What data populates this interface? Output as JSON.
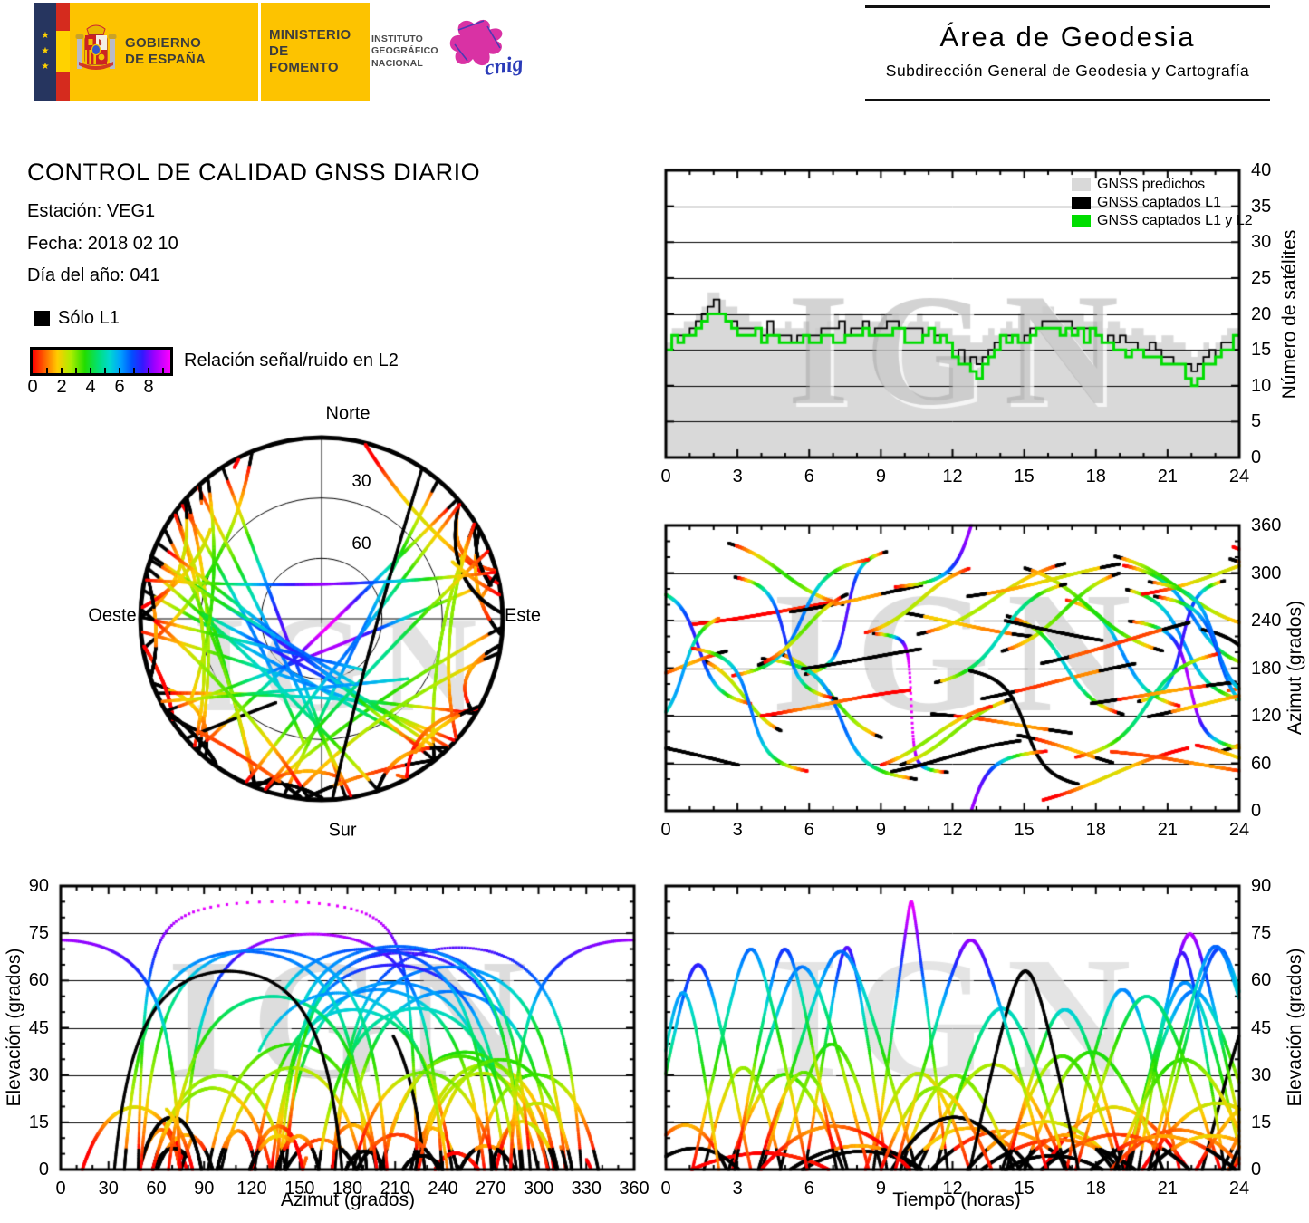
{
  "header": {
    "gobierno": {
      "line1": "GOBIERNO",
      "line2": "DE ESPAÑA"
    },
    "ministerio": {
      "line1": "MINISTERIO",
      "line2": "DE FOMENTO"
    },
    "ign": {
      "line1": "INSTITUTO",
      "line2": "GEOGRÁFICO",
      "line3": "NACIONAL"
    },
    "cnig_label": "cnig",
    "area": {
      "title": "Área de Geodesia",
      "subtitle": "Subdirección General de Geodesia y Cartografía"
    }
  },
  "info": {
    "title": "CONTROL DE CALIDAD GNSS DIARIO",
    "station": "Estación: VEG1",
    "date": "Fecha: 2018 02 10",
    "doy": "Día del año: 041"
  },
  "legend": {
    "l1_only": "Sólo L1",
    "snr_label": "Relación señal/ruido en L2",
    "colorbar_ticks": [
      "0",
      "2",
      "4",
      "6",
      "8"
    ],
    "colorbar_range": [
      0,
      9.5
    ]
  },
  "skyplot": {
    "north": "Norte",
    "south": "Sur",
    "west": "Oeste",
    "east": "Este",
    "ring_labels": [
      "30",
      "60"
    ],
    "summary": "Sky plot of GNSS satellite tracks over 24 h; concentric rings mark 30° and 60° elevation; point color = L2 signal/noise ratio (red = low, magenta = high), black = L1 only; empty lobe toward north"
  },
  "watermark": "IGN",
  "colors": {
    "predicted_fill": "#d9d9d9",
    "captured_l1": "#000000",
    "captured_l1l2": "#00dd00",
    "l1_only": "#000000",
    "watermark_gray": "#969696",
    "snr_ramp": [
      [
        0.0,
        "#ff0000"
      ],
      [
        0.09,
        "#ff6600"
      ],
      [
        0.18,
        "#ffcc00"
      ],
      [
        0.28,
        "#aaee00"
      ],
      [
        0.38,
        "#22dd00"
      ],
      [
        0.48,
        "#00e07a"
      ],
      [
        0.56,
        "#00d8d0"
      ],
      [
        0.64,
        "#00a0ff"
      ],
      [
        0.72,
        "#0050ff"
      ],
      [
        0.8,
        "#3318ff"
      ],
      [
        0.88,
        "#9900ff"
      ],
      [
        1.0,
        "#ff00ff"
      ]
    ]
  },
  "chart_data": [
    {
      "id": "satellite_count",
      "type": "area",
      "xlabel": "",
      "ylabel": "Número de satélites",
      "xlim": [
        0,
        24
      ],
      "ylim": [
        0,
        40
      ],
      "x_ticks": [
        0,
        3,
        6,
        9,
        12,
        15,
        18,
        21,
        24
      ],
      "y_ticks": [
        0,
        5,
        10,
        15,
        20,
        25,
        30,
        35,
        40
      ],
      "grid_y": [
        5,
        10,
        15,
        20,
        25,
        30,
        35
      ],
      "legend": [
        {
          "label": "GNSS predichos",
          "color": "#d9d9d9"
        },
        {
          "label": "GNSS captados L1",
          "color": "#000000"
        },
        {
          "label": "GNSS captados L1 y L2",
          "color": "#00dd00"
        }
      ],
      "series": [
        {
          "name": "GNSS predichos",
          "style": "gray filled step area",
          "hourly_values": [
            17,
            19,
            23,
            20,
            19,
            19,
            18,
            19,
            20,
            20,
            20,
            19,
            17,
            16,
            18,
            20,
            21,
            20,
            19,
            18,
            17,
            16,
            15,
            16,
            18
          ]
        },
        {
          "name": "GNSS captados L1",
          "style": "black step line",
          "hourly_values": [
            16,
            18,
            22,
            18,
            18,
            17,
            17,
            18,
            18,
            18,
            18,
            18,
            15,
            13,
            16,
            17,
            19,
            18,
            17,
            16,
            15,
            14,
            13,
            15,
            18
          ]
        },
        {
          "name": "GNSS captados L1 y L2",
          "style": "green step line",
          "hourly_values": [
            16,
            17,
            21,
            17,
            17,
            16,
            16,
            17,
            17,
            17,
            17,
            17,
            15,
            11,
            16,
            17,
            18,
            17,
            17,
            15,
            14,
            13,
            11,
            14,
            17
          ]
        }
      ]
    },
    {
      "id": "azimuth_vs_time",
      "type": "scatter",
      "xlabel": "",
      "ylabel": "Azimut (grados)",
      "xlim": [
        0,
        24
      ],
      "ylim": [
        0,
        360
      ],
      "x_ticks": [
        0,
        3,
        6,
        9,
        12,
        15,
        18,
        21,
        24
      ],
      "y_ticks": [
        0,
        60,
        120,
        180,
        240,
        300,
        360
      ],
      "grid_y": [
        60,
        120,
        180,
        240,
        300
      ],
      "series_summary": "Azimuth of ~58 GNSS satellite passes vs time; point color = L2 signal/noise (red low to magenta high), black = L1 only; near-zenith passes appear as dotted quasi-vertical magenta runs"
    },
    {
      "id": "elevation_vs_azimuth",
      "type": "scatter",
      "xlabel": "Azimut (grados)",
      "ylabel": "Elevación (grados)",
      "xlim": [
        0,
        360
      ],
      "ylim": [
        0,
        90
      ],
      "x_ticks": [
        0,
        30,
        60,
        90,
        120,
        150,
        180,
        210,
        240,
        270,
        300,
        330,
        360
      ],
      "y_ticks": [
        0,
        15,
        30,
        45,
        60,
        75,
        90
      ],
      "grid_y": [
        15,
        30,
        45,
        60,
        75
      ],
      "series_summary": "Elevation vs azimuth arcs for all passes; low-elevation track ends red/black, high-elevation segments blue/magenta"
    },
    {
      "id": "elevation_vs_time",
      "type": "scatter",
      "xlabel": "Tiempo (horas)",
      "ylabel": "Elevación (grados)",
      "xlim": [
        0,
        24
      ],
      "ylim": [
        0,
        90
      ],
      "x_ticks": [
        0,
        3,
        6,
        9,
        12,
        15,
        18,
        21,
        24
      ],
      "y_ticks": [
        0,
        15,
        30,
        45,
        60,
        75,
        90
      ],
      "grid_y": [
        15,
        30,
        45,
        60,
        75
      ],
      "series_summary": "Elevation vs time arcs (rise–culminate–set) for all passes, colored by L2 signal/noise; black = L1 only"
    }
  ]
}
